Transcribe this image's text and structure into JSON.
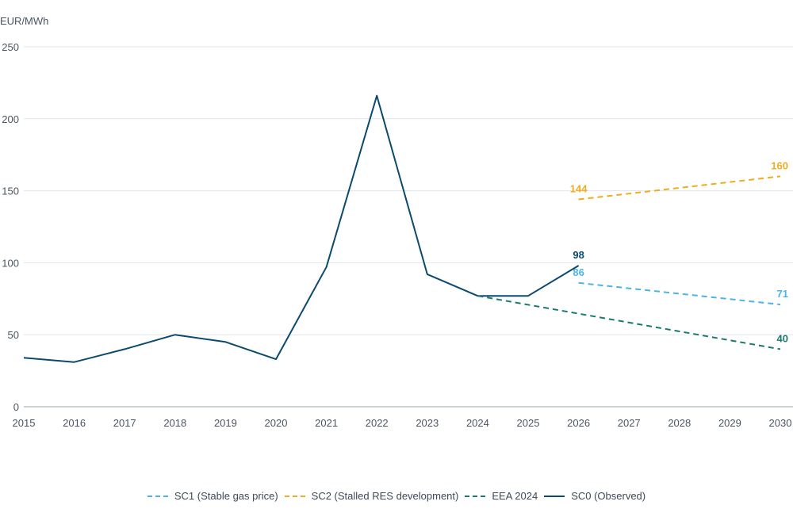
{
  "chart_data": {
    "type": "line",
    "ylabel": "EUR/MWh",
    "ylim": [
      0,
      250
    ],
    "yticks": [
      0,
      50,
      100,
      150,
      200,
      250
    ],
    "xlim": [
      2015,
      2030
    ],
    "xticks": [
      2015,
      2016,
      2017,
      2018,
      2019,
      2020,
      2021,
      2022,
      2023,
      2024,
      2025,
      2026,
      2027,
      2028,
      2029,
      2030
    ],
    "grid": "horizontal",
    "legend_position": "bottom",
    "series": [
      {
        "name": "SC1 (Stable gas price)",
        "color": "#4db3e6",
        "style": "dashed",
        "x": [
          2026,
          2030
        ],
        "values": [
          86,
          71
        ],
        "labels": [
          {
            "x": 2026,
            "y": 86,
            "text": "86"
          },
          {
            "x": 2030,
            "y": 71,
            "text": "71"
          }
        ]
      },
      {
        "name": "SC2 (Stalled RES development)",
        "color": "#f0ab1e",
        "style": "dashed",
        "x": [
          2026,
          2030
        ],
        "values": [
          144,
          160
        ],
        "labels": [
          {
            "x": 2026,
            "y": 144,
            "text": "144"
          },
          {
            "x": 2030,
            "y": 160,
            "text": "160"
          }
        ]
      },
      {
        "name": "EEA 2024",
        "color": "#1a7a6e",
        "style": "dashed",
        "x": [
          2024,
          2030
        ],
        "values": [
          77,
          40
        ],
        "labels": [
          {
            "x": 2030,
            "y": 40,
            "text": "40"
          }
        ]
      },
      {
        "name": "SC0 (Observed)",
        "color": "#0b4a6e",
        "style": "solid",
        "x": [
          2015,
          2016,
          2017,
          2018,
          2019,
          2020,
          2021,
          2022,
          2023,
          2024,
          2025,
          2026
        ],
        "values": [
          34,
          31,
          40,
          50,
          45,
          33,
          97,
          216,
          92,
          77,
          77,
          98
        ],
        "labels": [
          {
            "x": 2026,
            "y": 98,
            "text": "98"
          }
        ]
      }
    ]
  }
}
